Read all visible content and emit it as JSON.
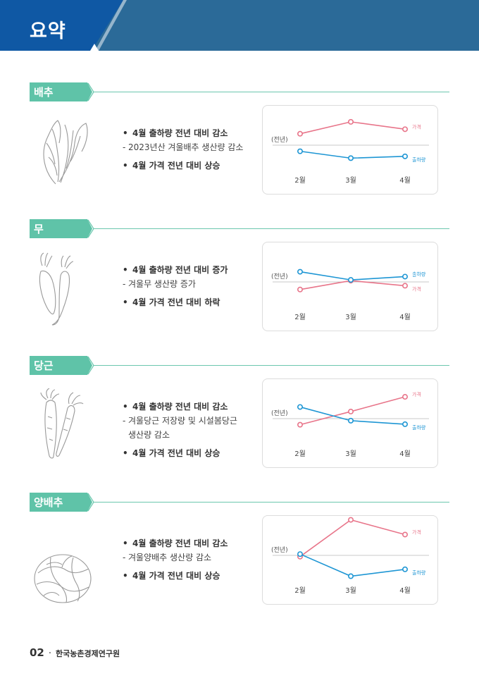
{
  "page": {
    "title": "요약",
    "page_number": "02",
    "organization": "한국농촌경제연구원"
  },
  "colors": {
    "header_dark": "#0e5aa0",
    "header_light": "#2a6a9a",
    "tag": "#5fc3a8",
    "price": "#e8758a",
    "shipment": "#1e96d4",
    "baseline": "#c8c8c8"
  },
  "sections": [
    {
      "tag": "배추",
      "icon": "napa-cabbage-icon",
      "bullets": {
        "main1": "4월 출하량 전년 대비 감소",
        "sub": [
          "2023년산 겨울배추 생산량 감소"
        ],
        "main2": "4월 가격 전년 대비 상승"
      },
      "chart": {
        "baseline_label": "(전년)",
        "x_labels": [
          "2월",
          "3월",
          "4월"
        ],
        "price_label": "가격",
        "shipment_label": "출하량"
      }
    },
    {
      "tag": "무",
      "icon": "radish-icon",
      "bullets": {
        "main1": "4월 출하량 전년 대비 증가",
        "sub": [
          "겨울무 생산량 증가"
        ],
        "main2": "4월 가격 전년 대비 하락"
      },
      "chart": {
        "baseline_label": "(전년)",
        "x_labels": [
          "2월",
          "3월",
          "4월"
        ],
        "price_label": "가격",
        "shipment_label": "출하량"
      }
    },
    {
      "tag": "당근",
      "icon": "carrot-icon",
      "bullets": {
        "main1": "4월 출하량 전년 대비 감소",
        "sub": [
          "겨울당근 저장량 및 시설봄당근",
          "생산량 감소"
        ],
        "main2": "4월 가격 전년 대비 상승"
      },
      "chart": {
        "baseline_label": "(전년)",
        "x_labels": [
          "2월",
          "3월",
          "4월"
        ],
        "price_label": "가격",
        "shipment_label": "출하량"
      }
    },
    {
      "tag": "양배추",
      "icon": "cabbage-icon",
      "bullets": {
        "main1": "4월 출하량 전년 대비 감소",
        "sub": [
          "겨울양배추 생산량 감소"
        ],
        "main2": "4월 가격 전년 대비 상승"
      },
      "chart": {
        "baseline_label": "(전년)",
        "x_labels": [
          "2월",
          "3월",
          "4월"
        ],
        "price_label": "가격",
        "shipment_label": "출하량"
      }
    }
  ],
  "chart_data": [
    {
      "type": "line",
      "title": "",
      "categories": [
        "2월",
        "3월",
        "4월"
      ],
      "ylim": [
        -1,
        1
      ],
      "baseline": 0,
      "series": [
        {
          "name": "가격",
          "values": [
            0.45,
            0.92,
            0.63
          ]
        },
        {
          "name": "출하량",
          "values": [
            -0.24,
            -0.51,
            -0.44
          ]
        }
      ]
    },
    {
      "type": "line",
      "title": "",
      "categories": [
        "2월",
        "3월",
        "4월"
      ],
      "ylim": [
        -1,
        1
      ],
      "baseline": 0,
      "series": [
        {
          "name": "가격",
          "values": [
            -0.3,
            0.05,
            -0.15
          ]
        },
        {
          "name": "출하량",
          "values": [
            0.4,
            0.08,
            0.21
          ]
        }
      ]
    },
    {
      "type": "line",
      "title": "",
      "categories": [
        "2월",
        "3월",
        "4월"
      ],
      "ylim": [
        -1,
        1
      ],
      "baseline": 0,
      "series": [
        {
          "name": "가격",
          "values": [
            -0.24,
            0.28,
            0.86
          ]
        },
        {
          "name": "출하량",
          "values": [
            0.46,
            -0.08,
            -0.22
          ]
        }
      ]
    },
    {
      "type": "line",
      "title": "",
      "categories": [
        "2월",
        "3월",
        "4월"
      ],
      "ylim": [
        -1,
        1
      ],
      "baseline": 0,
      "series": [
        {
          "name": "가격",
          "values": [
            -0.05,
            1.4,
            0.82
          ]
        },
        {
          "name": "출하량",
          "values": [
            0.05,
            -0.82,
            -0.55
          ]
        }
      ]
    }
  ]
}
